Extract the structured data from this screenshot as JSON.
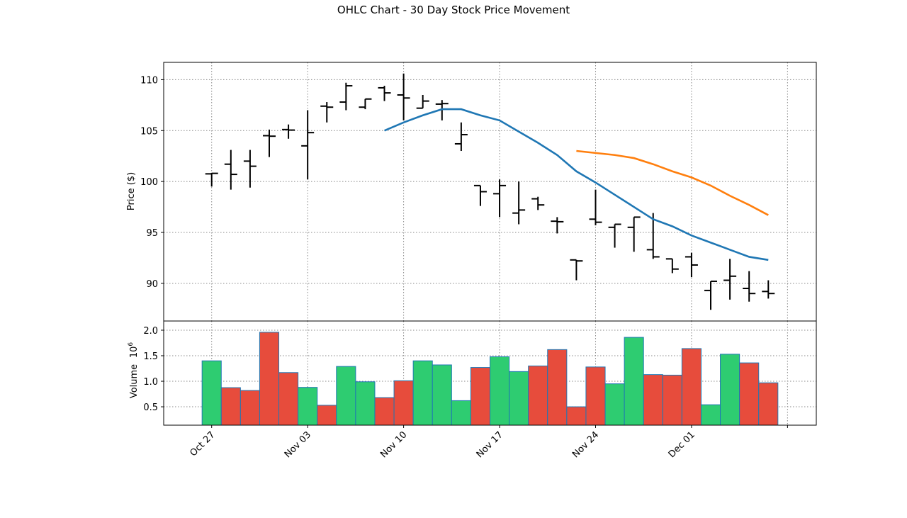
{
  "chart_data": {
    "type": "ohlc",
    "title": "OHLC Chart - 30 Day Stock Price Movement",
    "ylabel": "Price ($)",
    "volume_ylabel": "Volume",
    "volume_offset_label": "10^6",
    "x_tick_indices": [
      0,
      5,
      10,
      15,
      20,
      25,
      30
    ],
    "x_tick_labels": [
      "Oct 27",
      "Nov 03",
      "Nov 10",
      "Nov 17",
      "Nov 24",
      "Dec 01",
      ""
    ],
    "xlim": [
      -2.5,
      31.5
    ],
    "price_ylim": [
      86.3,
      111.7
    ],
    "price_yticks": [
      90,
      95,
      100,
      105,
      110
    ],
    "volume_ylim": [
      0.14,
      2.18
    ],
    "volume_yticks": [
      0.5,
      1.0,
      1.5,
      2.0
    ],
    "grid": true,
    "legend": "none",
    "colors": {
      "up": "#2ecc71",
      "down": "#e74c3c",
      "bar_edge": "#1f77b4",
      "ohlc": "#000000",
      "ma_short": "#1f77b4",
      "ma_long": "#ff7f0e"
    },
    "open": [
      100.75,
      101.7,
      102.0,
      104.5,
      105.1,
      103.5,
      107.4,
      107.8,
      107.3,
      109.2,
      108.5,
      107.2,
      107.6,
      103.7,
      99.6,
      98.8,
      96.9,
      98.3,
      96.1,
      92.3,
      96.3,
      95.5,
      95.5,
      93.3,
      92.4,
      92.6,
      89.3,
      90.3,
      89.5,
      89.2
    ],
    "high": [
      100.85,
      103.1,
      103.1,
      105.1,
      105.6,
      107.0,
      107.8,
      109.7,
      108.1,
      109.4,
      110.6,
      108.5,
      108.0,
      105.8,
      99.6,
      100.2,
      100.0,
      98.5,
      96.5,
      92.3,
      99.2,
      95.8,
      96.5,
      96.9,
      92.4,
      93.0,
      90.2,
      92.4,
      91.2,
      90.3
    ],
    "low": [
      99.5,
      99.2,
      99.4,
      102.4,
      104.2,
      100.2,
      105.8,
      107.0,
      107.1,
      107.9,
      106.0,
      107.2,
      106.0,
      103.0,
      97.6,
      96.5,
      95.8,
      97.2,
      94.9,
      90.3,
      95.7,
      93.5,
      93.1,
      92.4,
      91.0,
      90.6,
      87.4,
      88.4,
      88.2,
      88.5
    ],
    "close": [
      100.8,
      100.7,
      101.5,
      104.45,
      105.05,
      104.8,
      107.3,
      109.4,
      108.1,
      108.7,
      108.2,
      107.9,
      107.65,
      104.6,
      99.0,
      99.6,
      97.2,
      97.7,
      96.05,
      92.2,
      96.0,
      95.8,
      96.5,
      92.6,
      91.4,
      91.8,
      90.2,
      90.7,
      89.0,
      89.0
    ],
    "volume": [
      1.4,
      0.875,
      0.82,
      1.96,
      1.17,
      0.88,
      0.53,
      1.29,
      0.99,
      0.68,
      1.01,
      1.4,
      1.32,
      0.62,
      1.27,
      1.48,
      1.19,
      1.3,
      1.62,
      0.5,
      1.28,
      0.95,
      1.86,
      1.13,
      1.12,
      1.64,
      0.54,
      1.53,
      1.36,
      0.97
    ],
    "ma_short": {
      "start_index": 9,
      "values": [
        105.0,
        105.8,
        106.5,
        107.1,
        107.1,
        106.5,
        106.0,
        104.9,
        103.8,
        102.6,
        101.0,
        99.9,
        98.7,
        97.5,
        96.3,
        95.6,
        94.7,
        94.0,
        93.3,
        92.6,
        92.3
      ]
    },
    "ma_long": {
      "start_index": 19,
      "values": [
        103.0,
        102.8,
        102.6,
        102.3,
        101.7,
        101.0,
        100.4,
        99.6,
        98.6,
        97.7,
        96.7
      ]
    }
  }
}
